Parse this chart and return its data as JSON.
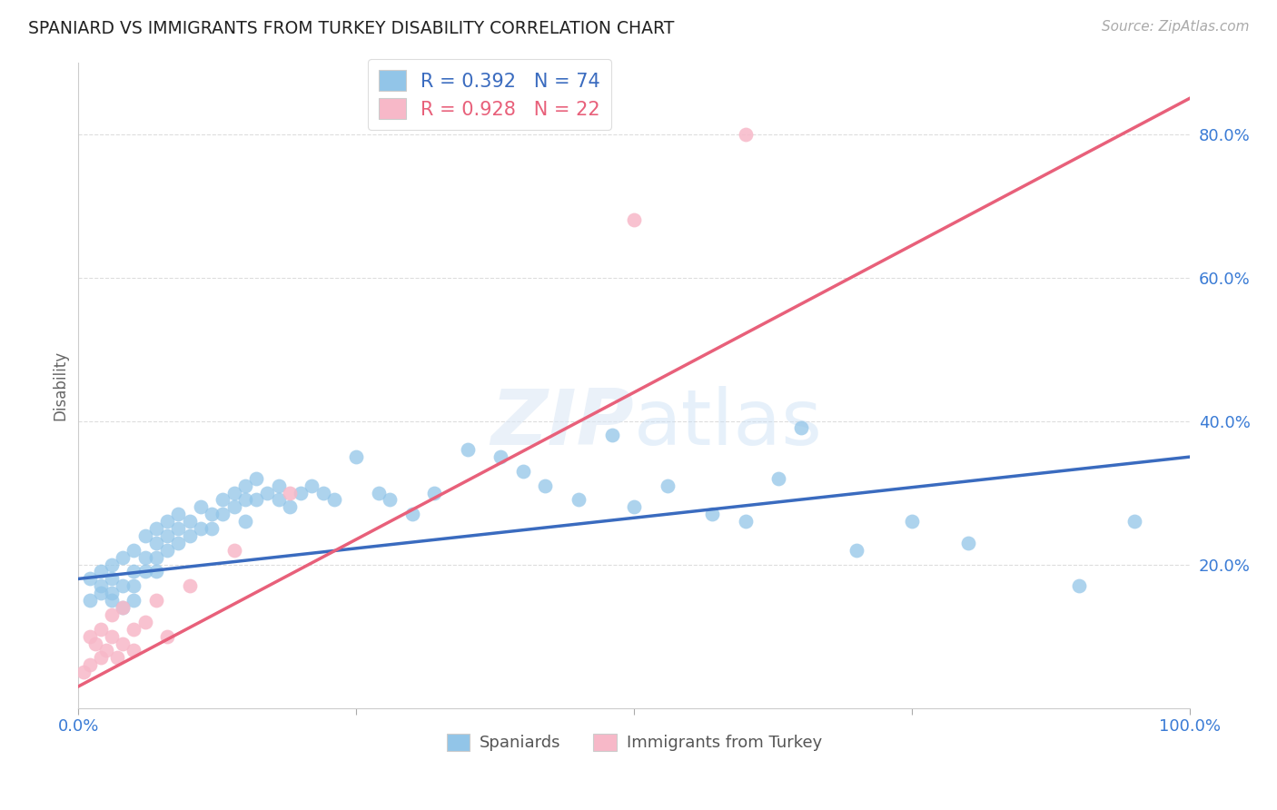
{
  "title": "SPANIARD VS IMMIGRANTS FROM TURKEY DISABILITY CORRELATION CHART",
  "source": "Source: ZipAtlas.com",
  "ylabel": "Disability",
  "xlim": [
    0,
    100
  ],
  "ylim": [
    0,
    90
  ],
  "yticks": [
    20,
    40,
    60,
    80
  ],
  "ytick_labels": [
    "20.0%",
    "40.0%",
    "60.0%",
    "80.0%"
  ],
  "xtick_labels": [
    "0.0%",
    "",
    "",
    "",
    "100.0%"
  ],
  "R_blue": 0.392,
  "N_blue": 74,
  "R_pink": 0.928,
  "N_pink": 22,
  "blue_color": "#92c5e8",
  "pink_color": "#f7b8c8",
  "blue_line_color": "#3a6bbf",
  "pink_line_color": "#e8607a",
  "legend_blue_label": "Spaniards",
  "legend_pink_label": "Immigrants from Turkey",
  "background_color": "#ffffff",
  "grid_color": "#dddddd",
  "blue_line_x0": 0,
  "blue_line_y0": 18,
  "blue_line_x1": 100,
  "blue_line_y1": 35,
  "pink_line_x0": 0,
  "pink_line_y0": 3,
  "pink_line_x1": 100,
  "pink_line_y1": 85,
  "spaniards_x": [
    1,
    1,
    2,
    2,
    2,
    3,
    3,
    3,
    3,
    4,
    4,
    4,
    5,
    5,
    5,
    5,
    6,
    6,
    6,
    7,
    7,
    7,
    7,
    8,
    8,
    8,
    9,
    9,
    9,
    10,
    10,
    11,
    11,
    12,
    12,
    13,
    13,
    14,
    14,
    15,
    15,
    15,
    16,
    16,
    17,
    18,
    18,
    19,
    20,
    21,
    22,
    23,
    25,
    27,
    28,
    30,
    32,
    35,
    38,
    40,
    42,
    45,
    48,
    50,
    53,
    57,
    60,
    63,
    65,
    70,
    75,
    80,
    90,
    95
  ],
  "spaniards_y": [
    15,
    18,
    17,
    16,
    19,
    18,
    16,
    20,
    15,
    21,
    17,
    14,
    22,
    19,
    17,
    15,
    24,
    21,
    19,
    25,
    23,
    21,
    19,
    26,
    24,
    22,
    27,
    25,
    23,
    26,
    24,
    28,
    25,
    27,
    25,
    29,
    27,
    30,
    28,
    31,
    29,
    26,
    32,
    29,
    30,
    31,
    29,
    28,
    30,
    31,
    30,
    29,
    35,
    30,
    29,
    27,
    30,
    36,
    35,
    33,
    31,
    29,
    38,
    28,
    31,
    27,
    26,
    32,
    39,
    22,
    26,
    23,
    17,
    26
  ],
  "turkey_x": [
    0.5,
    1,
    1,
    1.5,
    2,
    2,
    2.5,
    3,
    3,
    3.5,
    4,
    4,
    5,
    5,
    6,
    7,
    8,
    10,
    14,
    19,
    50,
    60
  ],
  "turkey_y": [
    5,
    6,
    10,
    9,
    7,
    11,
    8,
    10,
    13,
    7,
    9,
    14,
    8,
    11,
    12,
    15,
    10,
    17,
    22,
    30,
    68,
    80
  ]
}
